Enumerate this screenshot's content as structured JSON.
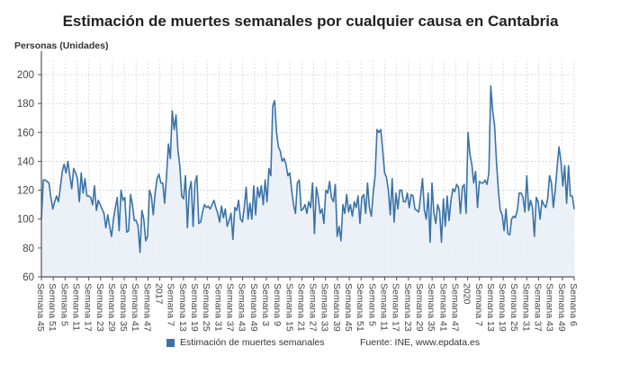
{
  "chart_data": {
    "type": "area",
    "title": "Estimación de muertes semanales por cualquier causa en Cantabria",
    "ylabel": "Personas (Unidades)",
    "xlabel": "",
    "ylim": [
      60,
      210
    ],
    "yticks": [
      60,
      80,
      100,
      120,
      140,
      160,
      180,
      200
    ],
    "grid": true,
    "legend_position": "bottom",
    "line_color": "#3a73a8",
    "fill_color": "#e9eff7",
    "xtick_labels": [
      "Semana 45",
      "Semana 51",
      "Semana 5",
      "Semana 11",
      "Semana 17",
      "Semana 23",
      "Semana 29",
      "Semana 35",
      "Semana 41",
      "Semana 47",
      "2017",
      "Semana 7",
      "Semana 13",
      "Semana 19",
      "Semana 25",
      "Semana 31",
      "Semana 37",
      "Semana 43",
      "Semana 49",
      "Semana 3",
      "Semana 9",
      "Semana 15",
      "Semana 21",
      "Semana 27",
      "Semana 33",
      "Semana 39",
      "Semana 45",
      "Semana 51",
      "Semana 5",
      "Semana 11",
      "Semana 17",
      "Semana 23",
      "Semana 29",
      "Semana 35",
      "Semana 41",
      "Semana 47",
      "2020",
      "Semana 7",
      "Semana 13",
      "Semana 19",
      "Semana 25",
      "Semana 31",
      "Semana 37",
      "Semana 43",
      "Semana 49",
      "Semana 6"
    ],
    "series": [
      {
        "name": "Estimación de muertes semanales",
        "values": [
          100,
          127,
          127,
          126,
          125,
          115,
          107,
          112,
          116,
          112,
          122,
          133,
          138,
          132,
          140,
          130,
          121,
          135,
          132,
          128,
          112,
          132,
          118,
          128,
          116,
          116,
          115,
          110,
          123,
          106,
          113,
          110,
          107,
          104,
          94,
          103,
          95,
          88,
          100,
          108,
          115,
          92,
          120,
          113,
          115,
          91,
          92,
          117,
          110,
          99,
          99,
          95,
          77,
          106,
          100,
          85,
          88,
          120,
          116,
          103,
          118,
          128,
          131,
          125,
          125,
          111,
          130,
          152,
          142,
          175,
          162,
          172,
          148,
          137,
          116,
          114,
          130,
          94,
          120,
          126,
          95,
          125,
          130,
          97,
          98,
          105,
          110,
          108,
          109,
          107,
          110,
          113,
          108,
          104,
          98,
          109,
          101,
          107,
          95,
          99,
          104,
          86,
          108,
          106,
          113,
          100,
          98,
          108,
          122,
          100,
          111,
          100,
          123,
          103,
          122,
          115,
          123,
          110,
          127,
          112,
          135,
          130,
          178,
          182,
          160,
          150,
          147,
          140,
          142,
          138,
          130,
          132,
          120,
          110,
          104,
          125,
          127,
          106,
          107,
          110,
          104,
          112,
          108,
          125,
          90,
          122,
          115,
          104,
          107,
          97,
          120,
          118,
          126,
          115,
          112,
          124,
          88,
          95,
          85,
          110,
          104,
          117,
          105,
          110,
          102,
          112,
          108,
          116,
          97,
          115,
          117,
          104,
          125,
          108,
          102,
          118,
          130,
          162,
          160,
          162,
          148,
          132,
          129,
          120,
          103,
          128,
          98,
          118,
          107,
          120,
          120,
          112,
          112,
          118,
          108,
          117,
          116,
          107,
          106,
          105,
          116,
          128,
          106,
          100,
          118,
          84,
          125,
          104,
          97,
          110,
          106,
          84,
          114,
          95,
          116,
          99,
          113,
          121,
          119,
          124,
          122,
          104,
          122,
          124,
          104,
          160,
          145,
          138,
          125,
          133,
          108,
          126,
          125,
          125,
          127,
          124,
          132,
          192,
          175,
          165,
          140,
          120,
          106,
          103,
          92,
          107,
          90,
          89,
          100,
          102,
          101,
          106,
          118,
          118,
          115,
          105,
          130,
          106,
          113,
          108,
          88,
          115,
          112,
          100,
          113,
          110,
          108,
          114,
          130,
          125,
          108,
          120,
          136,
          150,
          140,
          123,
          137,
          111,
          137,
          116,
          116,
          107
        ]
      }
    ],
    "source": "Fuente: INE, www.epdata.es"
  }
}
